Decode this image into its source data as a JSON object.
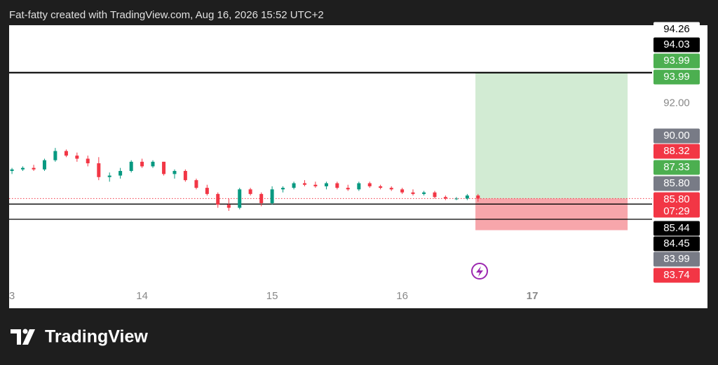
{
  "header": "Fat-fatty created with TradingView.com, Aug 16, 2026 15:52 UTC+2",
  "brand": "TradingView",
  "chart_data": {
    "type": "candlestick",
    "x": [
      13.0,
      13.083,
      13.167,
      13.25,
      13.333,
      13.417,
      13.5,
      13.583,
      13.667,
      13.75,
      13.833,
      13.917,
      14.0,
      14.083,
      14.167,
      14.25,
      14.333,
      14.417,
      14.5,
      14.583,
      14.667,
      14.75,
      14.833,
      14.917,
      15.0,
      15.083,
      15.167,
      15.25,
      15.333,
      15.417,
      15.5,
      15.583,
      15.667,
      15.75,
      15.833,
      15.917,
      16.0,
      16.083,
      16.167,
      16.25,
      16.333,
      16.417,
      16.5,
      16.583
    ],
    "open": [
      87.6,
      87.7,
      87.8,
      87.7,
      88.3,
      88.9,
      88.6,
      88.4,
      88.1,
      87.2,
      87.3,
      87.6,
      88.2,
      87.9,
      88.2,
      87.4,
      87.6,
      87.0,
      86.5,
      86.1,
      85.4,
      85.2,
      86.4,
      86.1,
      85.5,
      86.4,
      86.5,
      86.8,
      86.7,
      86.6,
      86.8,
      86.5,
      86.4,
      86.8,
      86.6,
      86.5,
      86.4,
      86.2,
      86.1,
      86.2,
      85.9,
      85.8,
      85.8,
      86.0
    ],
    "high": [
      87.8,
      87.9,
      88.0,
      88.4,
      89.1,
      89.0,
      88.8,
      88.6,
      88.5,
      87.5,
      87.8,
      88.3,
      88.4,
      88.3,
      88.2,
      87.7,
      87.7,
      87.1,
      86.7,
      86.2,
      85.8,
      86.5,
      86.5,
      86.2,
      86.6,
      86.6,
      86.9,
      87.0,
      86.9,
      86.9,
      86.9,
      86.7,
      86.9,
      86.9,
      86.7,
      86.6,
      86.5,
      86.4,
      86.3,
      86.3,
      86.0,
      85.9,
      86.1,
      86.1
    ],
    "low": [
      87.4,
      87.6,
      87.6,
      87.6,
      88.2,
      88.5,
      88.2,
      87.9,
      87.0,
      86.9,
      87.1,
      87.5,
      87.8,
      87.8,
      87.3,
      87.1,
      86.9,
      86.4,
      86.0,
      85.2,
      85.0,
      85.1,
      86.0,
      85.3,
      85.4,
      86.2,
      86.4,
      86.6,
      86.5,
      86.4,
      86.4,
      86.3,
      86.3,
      86.5,
      86.4,
      86.3,
      86.1,
      86.0,
      86.0,
      85.8,
      85.7,
      85.7,
      85.7,
      85.6
    ],
    "close": [
      87.7,
      87.8,
      87.7,
      88.3,
      88.9,
      88.6,
      88.4,
      88.1,
      87.2,
      87.3,
      87.6,
      88.2,
      87.9,
      88.2,
      87.4,
      87.6,
      87.0,
      86.5,
      86.1,
      85.4,
      85.2,
      86.4,
      86.1,
      85.5,
      86.4,
      86.5,
      86.8,
      86.7,
      86.6,
      86.8,
      86.5,
      86.4,
      86.8,
      86.6,
      86.5,
      86.4,
      86.2,
      86.1,
      86.2,
      85.9,
      85.8,
      85.8,
      86.0,
      85.8
    ],
    "up_color": "#089981",
    "down_color": "#f23645",
    "xlim": [
      12.978,
      18.347
    ],
    "xticks": [
      {
        "value": 13,
        "label": "3"
      },
      14,
      15,
      16,
      17
    ],
    "ylim": [
      78.65,
      97.1
    ],
    "yticks": [
      {
        "value": 92,
        "label": "92.00"
      }
    ],
    "horizontal_lines": [
      94.03,
      93.99,
      85.44,
      84.45
    ],
    "current_price": 85.8,
    "position": {
      "x_start": 16.563,
      "x_end": 17.733,
      "entry": 85.8,
      "target": 93.99,
      "stop": 83.74,
      "profit_color": "#d2ebd3",
      "loss_color": "#f7a6ab"
    },
    "price_tags": [
      {
        "label": "94.26",
        "bg": "#ffffff",
        "fg": "#000000"
      },
      {
        "label": "94.03",
        "bg": "#000000",
        "fg": "#ffffff"
      },
      {
        "label": "93.99",
        "bg": "#4caf50",
        "fg": "#ffffff"
      },
      {
        "label": "93.99",
        "bg": "#4caf50",
        "fg": "#ffffff"
      },
      {
        "label": "90.00",
        "bg": "#787b86",
        "fg": "#ffffff"
      },
      {
        "label": "88.32",
        "bg": "#f23645",
        "fg": "#ffffff"
      },
      {
        "label": "87.33",
        "bg": "#4caf50",
        "fg": "#ffffff"
      },
      {
        "label": "85.80",
        "bg": "#787b86",
        "fg": "#ffffff"
      },
      {
        "label": "85.80",
        "bg": "#f23645",
        "fg": "#ffffff",
        "countdown": "07:29"
      },
      {
        "label": "85.44",
        "bg": "#000000",
        "fg": "#ffffff"
      },
      {
        "label": "84.45",
        "bg": "#000000",
        "fg": "#ffffff"
      },
      {
        "label": "83.99",
        "bg": "#787b86",
        "fg": "#ffffff"
      },
      {
        "label": "83.74",
        "bg": "#f23645",
        "fg": "#ffffff"
      }
    ]
  }
}
